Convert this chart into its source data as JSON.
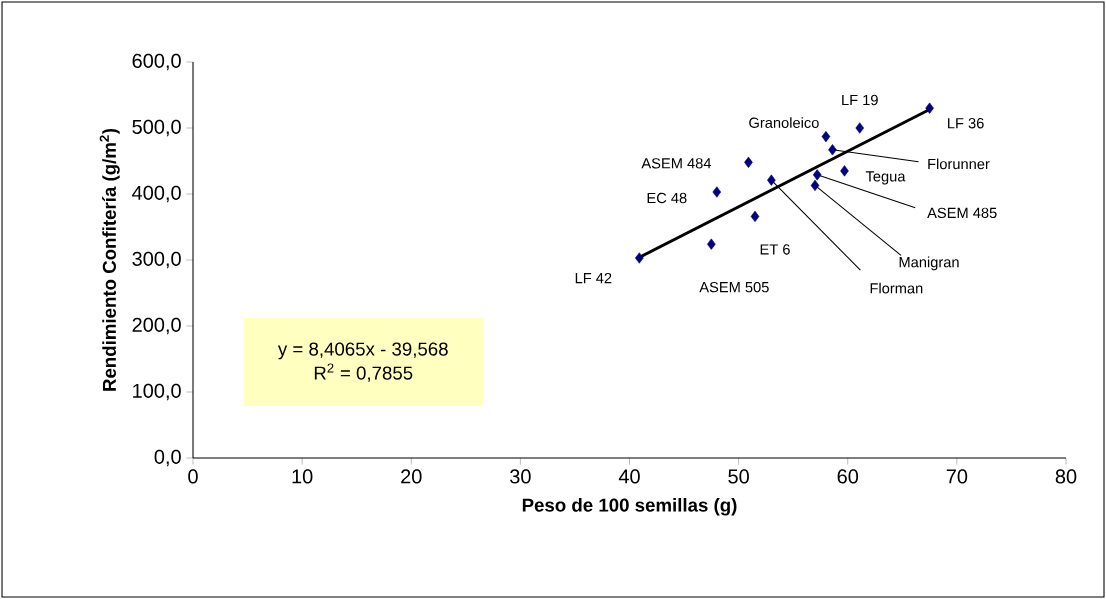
{
  "chart_data": {
    "type": "scatter",
    "xlabel": "Peso de 100 semillas (g)",
    "ylabel": "Rendimiento Confitería (g/m$^{2}$)",
    "xlim": [
      0,
      80
    ],
    "xticks": [
      0,
      10,
      20,
      30,
      40,
      50,
      60,
      70,
      80
    ],
    "ylim": [
      0,
      600
    ],
    "yticks": [
      {
        "value": 0,
        "label": "0,0"
      },
      {
        "value": 100,
        "label": "100,0"
      },
      {
        "value": 200,
        "label": "200,0"
      },
      {
        "value": 300,
        "label": "300,0"
      },
      {
        "value": 400,
        "label": "400,0"
      },
      {
        "value": 500,
        "label": "500,0"
      },
      {
        "value": 600,
        "label": "600,0"
      }
    ],
    "marker": "diamond",
    "series": [
      {
        "color": "#000080",
        "x": [
          40.9,
          47.5,
          48.0,
          50.9,
          51.5,
          53.0,
          57.0,
          57.2,
          59.7,
          58.6,
          58.0,
          61.1,
          67.5
        ],
        "values": [
          303,
          324,
          403,
          448,
          366,
          421,
          413,
          429,
          435,
          467,
          487,
          500,
          530
        ]
      },
      {
        "type": "line",
        "color": "#000000",
        "marker": "none",
        "x": [
          40.9,
          67.5
        ],
        "values": [
          304,
          528
        ]
      }
    ],
    "annotations": [
      {
        "text": "LF 42",
        "x": 40.9,
        "y": 303
      },
      {
        "text": "ASEM 505",
        "x": 47.5,
        "y": 324
      },
      {
        "text": "EC 48",
        "x": 48.0,
        "y": 403
      },
      {
        "text": "ASEM 484",
        "x": 50.9,
        "y": 448
      },
      {
        "text": "ET 6",
        "x": 51.5,
        "y": 366
      },
      {
        "text": "Florman",
        "x": 53.0,
        "y": 421
      },
      {
        "text": "Manigran",
        "x": 57.0,
        "y": 413
      },
      {
        "text": "ASEM 485",
        "x": 57.2,
        "y": 429
      },
      {
        "text": "Tegua",
        "x": 59.7,
        "y": 435
      },
      {
        "text": "Florunner",
        "x": 58.6,
        "y": 467
      },
      {
        "text": "Granoleico",
        "x": 58.0,
        "y": 487
      },
      {
        "text": "LF 19",
        "x": 61.1,
        "y": 500
      },
      {
        "text": "LF 36",
        "x": 67.5,
        "y": 530
      },
      "y = 8,4065x - 39,568",
      "R$^{2}$ = 0,7855"
    ]
  }
}
